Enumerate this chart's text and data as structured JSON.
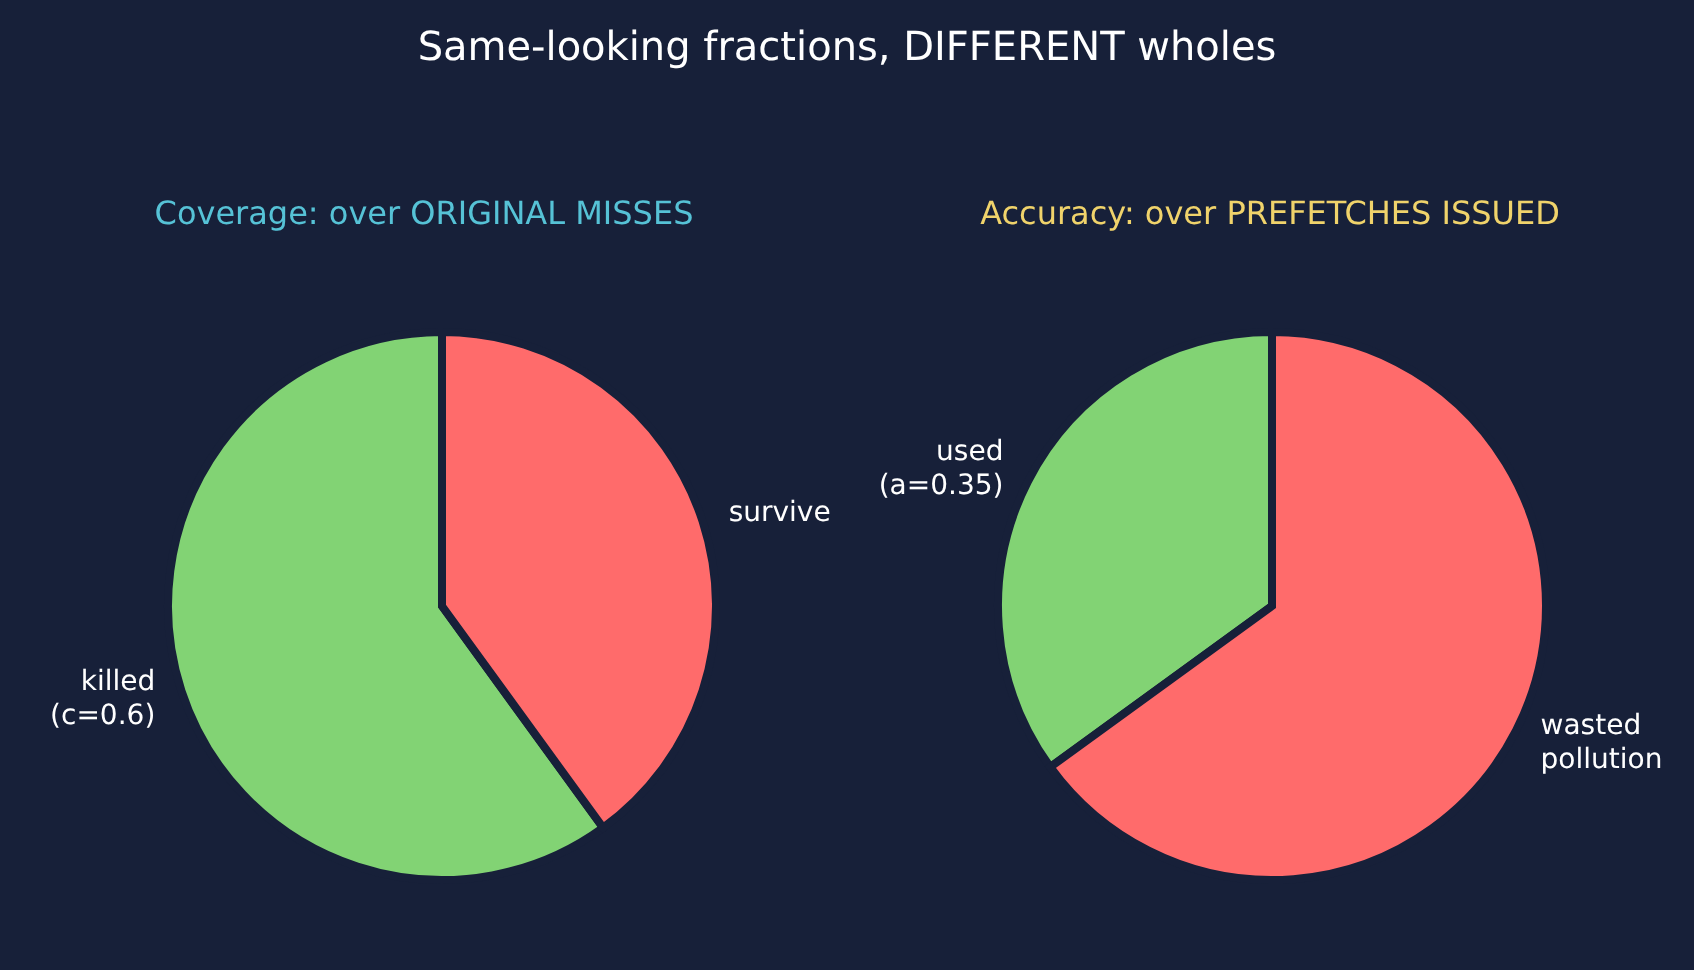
{
  "chart_data": [
    {
      "type": "pie",
      "title": "Same-looking fractions, DIFFERENT wholes",
      "subtitle": "Coverage: over ORIGINAL MISSES",
      "categories": [
        "killed\n(c=0.6)",
        "survive"
      ],
      "values": [
        60,
        40
      ],
      "colors": [
        "#82d374",
        "#ff6b6b"
      ]
    },
    {
      "type": "pie",
      "subtitle": "Accuracy: over PREFETCHES ISSUED",
      "categories": [
        "used\n(a=0.35)",
        "wasted\npollution"
      ],
      "values": [
        35,
        65
      ],
      "colors": [
        "#82d374",
        "#ff6b6b"
      ]
    }
  ]
}
